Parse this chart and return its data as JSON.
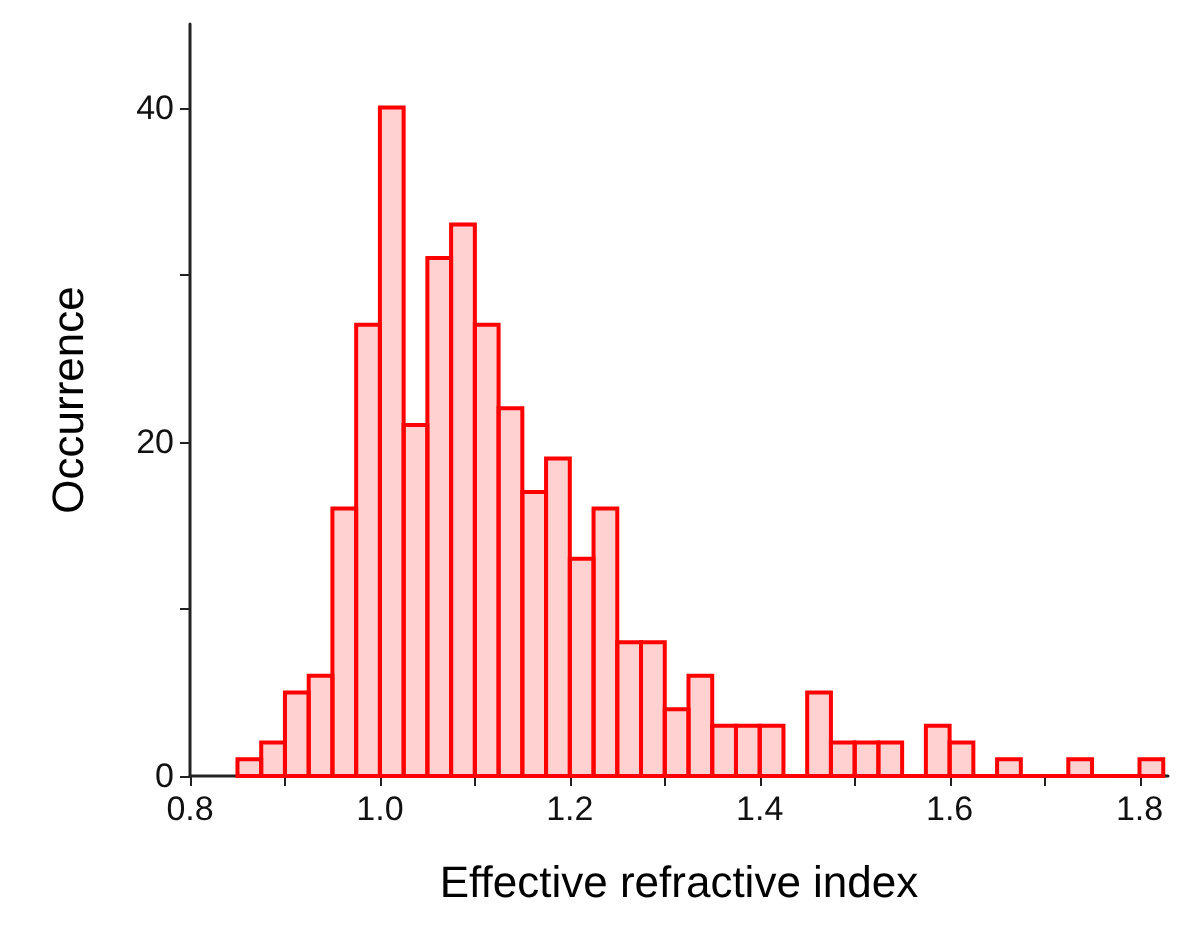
{
  "chart_data": {
    "type": "histogram",
    "xlabel": "Effective refractive index",
    "ylabel": "Occurrence",
    "bins": [
      0.85,
      0.875,
      0.9,
      0.925,
      0.95,
      0.975,
      1.0,
      1.025,
      1.05,
      1.075,
      1.1,
      1.125,
      1.15,
      1.175,
      1.2,
      1.225,
      1.25,
      1.275,
      1.3,
      1.325,
      1.35,
      1.375,
      1.4,
      1.425,
      1.45,
      1.475,
      1.5,
      1.525,
      1.55,
      1.575,
      1.6,
      1.625,
      1.65,
      1.675,
      1.7,
      1.725,
      1.75,
      1.775,
      1.8,
      1.825
    ],
    "values": [
      1,
      2,
      5,
      6,
      16,
      27,
      40,
      21,
      31,
      33,
      27,
      22,
      17,
      19,
      13,
      16,
      8,
      8,
      4,
      6,
      3,
      3,
      3,
      0,
      5,
      2,
      2,
      2,
      0,
      3,
      2,
      0,
      1,
      0,
      0,
      1,
      0,
      0,
      1
    ],
    "color": "#ff0000",
    "xlim": [
      0.8,
      1.83
    ],
    "xticks": [
      {
        "value": 0.8,
        "label": "0.8"
      },
      {
        "value": 0.9,
        "label": null
      },
      {
        "value": 1.0,
        "label": "1.0"
      },
      {
        "value": 1.1,
        "label": null
      },
      {
        "value": 1.2,
        "label": "1.2"
      },
      {
        "value": 1.3,
        "label": null
      },
      {
        "value": 1.4,
        "label": "1.4"
      },
      {
        "value": 1.5,
        "label": null
      },
      {
        "value": 1.6,
        "label": "1.6"
      },
      {
        "value": 1.7,
        "label": null
      },
      {
        "value": 1.8,
        "label": "1.8"
      }
    ],
    "ylim": [
      0,
      45
    ],
    "yticks": [
      0,
      {
        "value": 10,
        "label": null
      },
      20,
      {
        "value": 30,
        "label": null
      },
      40
    ]
  }
}
